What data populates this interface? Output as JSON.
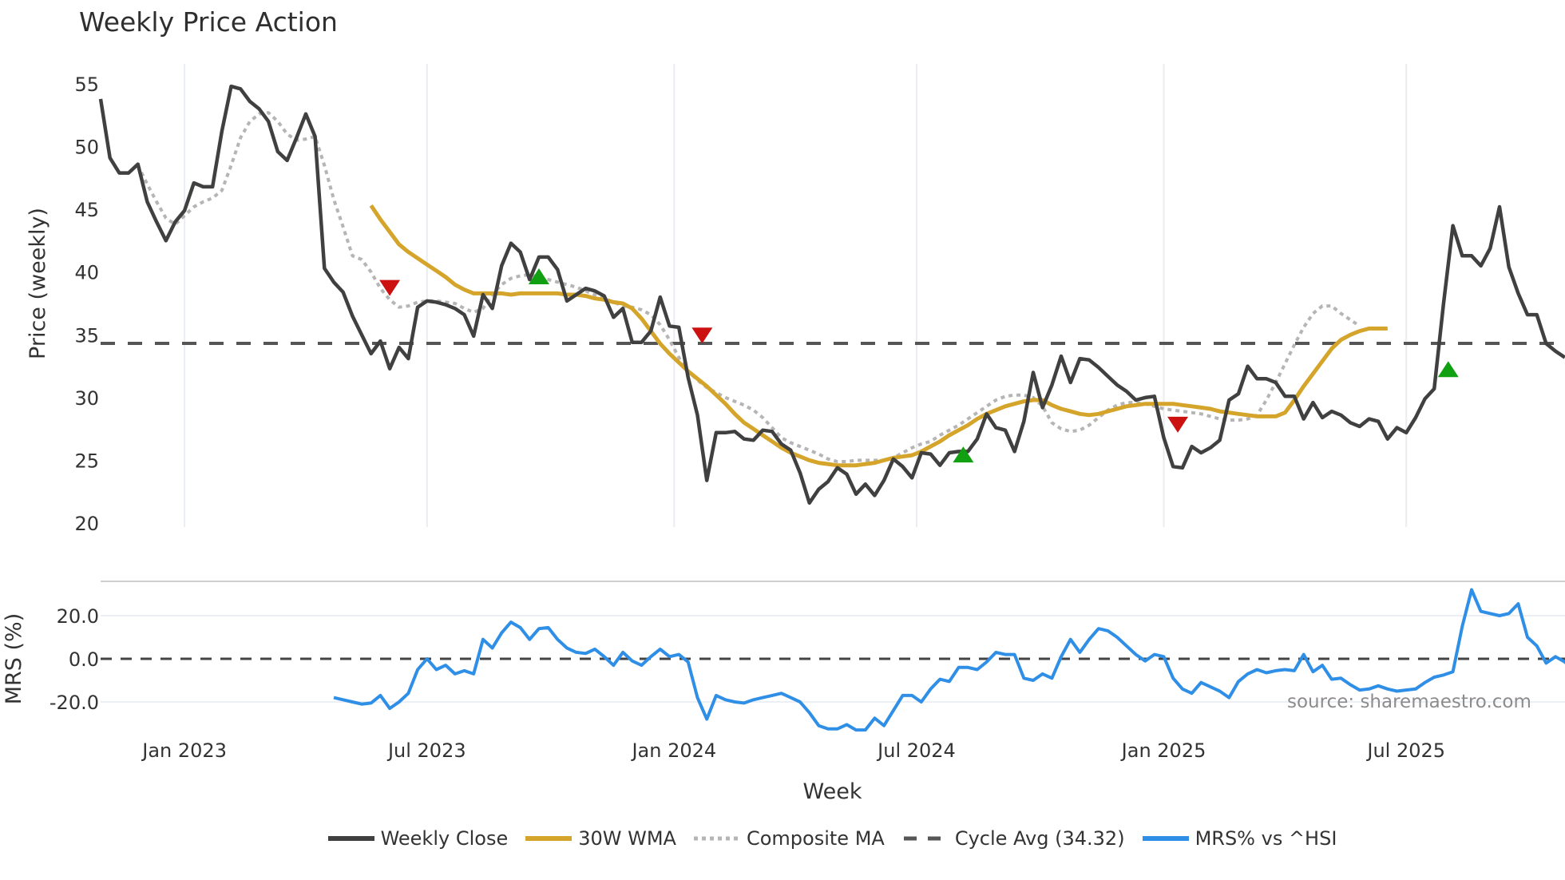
{
  "header": {
    "title": "Weekly Price Action"
  },
  "footer": {
    "source": "source: sharemaestro.com",
    "xlabel": "Week"
  },
  "legend": [
    {
      "label": "Weekly Close",
      "color": "#404040",
      "style": "solid"
    },
    {
      "label": "30W WMA",
      "color": "#d4a52a",
      "style": "solid"
    },
    {
      "label": "Composite MA",
      "color": "#b5b5b5",
      "style": "dotted"
    },
    {
      "label": "Cycle Avg (34.32)",
      "color": "#555555",
      "style": "dashed"
    },
    {
      "label": "MRS% vs ^HSI",
      "color": "#2f8fe6",
      "style": "solid"
    }
  ],
  "chart_data": [
    {
      "type": "line",
      "title": "Weekly Price Action",
      "xlabel": "Week",
      "ylabel": "Price (weekly)",
      "ylim": [
        20,
        55
      ],
      "yticks": [
        20,
        25,
        30,
        35,
        40,
        45,
        50,
        55
      ],
      "xticks": [
        "Jan 2023",
        "Jul 2023",
        "Jan 2024",
        "Jul 2024",
        "Jan 2025",
        "Jul 2025"
      ],
      "xtick_week_index": [
        9,
        35,
        61.5,
        87.5,
        114,
        140
      ],
      "grid": "vertical",
      "x_unit": "week index from first plotted week (~Nov 2022), ~1 week per step",
      "series": [
        {
          "name": "Weekly Close",
          "color": "#404040",
          "start": 0,
          "values": [
            53.8,
            49.1,
            47.9,
            47.9,
            48.6,
            45.6,
            44,
            42.5,
            44,
            44.9,
            47.1,
            46.8,
            46.8,
            51.2,
            54.8,
            54.6,
            53.6,
            53,
            52,
            49.6,
            48.9,
            50.7,
            52.6,
            50.8,
            40.3,
            39.2,
            38.4,
            36.5,
            35,
            33.5,
            34.5,
            32.3,
            34,
            33.1,
            37.2,
            37.7,
            37.6,
            37.4,
            37.1,
            36.6,
            34.9,
            38.2,
            37.1,
            40.5,
            42.3,
            41.6,
            39.4,
            41.2,
            41.2,
            40.2,
            37.7,
            38.2,
            38.7,
            38.5,
            38.1,
            36.4,
            37.1,
            34.4,
            34.4,
            35.3,
            38,
            35.7,
            35.6,
            31.6,
            28.6,
            23.4,
            27.2,
            27.2,
            27.3,
            26.7,
            26.6,
            27.4,
            27.3,
            26.3,
            25.8,
            24,
            21.6,
            22.7,
            23.3,
            24.4,
            23.9,
            22.3,
            23.1,
            22.2,
            23.4,
            25.1,
            24.5,
            23.6,
            25.6,
            25.5,
            24.6,
            25.6,
            25.7,
            25.7,
            26.7,
            28.7,
            27.6,
            27.4,
            25.7,
            28.1,
            32,
            29.2,
            31,
            33.3,
            31.2,
            33.1,
            33,
            32.4,
            31.7,
            31,
            30.5,
            29.8,
            30,
            30.1,
            26.8,
            24.5,
            24.4,
            26.1,
            25.6,
            26,
            26.6,
            29.8,
            30.3,
            32.5,
            31.5,
            31.5,
            31.2,
            30.1,
            30.1,
            28.3,
            29.6,
            28.4,
            28.9,
            28.6,
            28,
            27.7,
            28.3,
            28.1,
            26.7,
            27.6,
            27.2,
            28.4,
            29.9,
            30.7,
            37.5,
            43.7,
            41.3,
            41.3,
            40.5,
            41.9,
            45.2,
            40.4,
            38.3,
            36.6,
            36.6,
            34.3,
            33.7,
            33.2
          ]
        },
        {
          "name": "30W WMA",
          "color": "#d4a52a",
          "start": 29,
          "values": [
            45.3,
            44.2,
            43.2,
            42.2,
            41.6,
            41.1,
            40.6,
            40.1,
            39.6,
            39.0,
            38.6,
            38.3,
            38.3,
            38.3,
            38.3,
            38.2,
            38.3,
            38.3,
            38.3,
            38.3,
            38.3,
            38.2,
            38.2,
            38.1,
            37.9,
            37.8,
            37.6,
            37.5,
            37.1,
            36.3,
            35.3,
            34.3,
            33.5,
            32.8,
            32.1,
            31.5,
            30.9,
            30.2,
            29.5,
            28.7,
            28.0,
            27.5,
            27.0,
            26.5,
            26.0,
            25.6,
            25.3,
            25.0,
            24.8,
            24.7,
            24.6,
            24.6,
            24.6,
            24.7,
            24.8,
            25.0,
            25.2,
            25.3,
            25.4,
            25.7,
            26.1,
            26.5,
            27.0,
            27.4,
            27.8,
            28.3,
            28.7,
            29.0,
            29.3,
            29.5,
            29.7,
            29.8,
            29.8,
            29.4,
            29.1,
            28.9,
            28.7,
            28.6,
            28.7,
            28.9,
            29.1,
            29.3,
            29.4,
            29.5,
            29.5,
            29.5,
            29.5,
            29.4,
            29.3,
            29.2,
            29.1,
            28.9,
            28.8,
            28.7,
            28.6,
            28.5,
            28.5,
            28.5,
            28.8,
            29.8,
            30.9,
            31.9,
            32.9,
            33.9,
            34.6,
            35.0,
            35.3,
            35.5,
            35.5,
            35.5
          ]
        },
        {
          "name": "Composite MA",
          "color": "#b5b5b5",
          "style": "dotted",
          "start": 4,
          "values": [
            48.5,
            47,
            45.6,
            44.3,
            43.8,
            44.5,
            45.2,
            45.6,
            45.9,
            46.5,
            48.5,
            50.7,
            52,
            52.6,
            52.7,
            52,
            51,
            50.5,
            50.6,
            50.8,
            48.5,
            45.8,
            43.6,
            41.3,
            41.0,
            40.0,
            38.7,
            37.8,
            37.2,
            37.3,
            37.6,
            37.7,
            37.7,
            37.6,
            37.5,
            37.1,
            36.8,
            37.1,
            38.2,
            39.0,
            39.5,
            39.7,
            39.8,
            39.6,
            39.4,
            39.2,
            39.0,
            38.8,
            38.5,
            38.2,
            37.9,
            37.6,
            37.3,
            37.2,
            37.0,
            36.6,
            35.8,
            34.6,
            33.2,
            32.1,
            31.4,
            30.8,
            30.4,
            30.0,
            29.7,
            29.4,
            29.0,
            28.4,
            27.6,
            26.8,
            26.4,
            26.1,
            25.8,
            25.5,
            25.1,
            24.9,
            24.9,
            25.0,
            25.0,
            25.0,
            25.0,
            25.2,
            25.6,
            26.0,
            26.3,
            26.5,
            27.0,
            27.4,
            27.8,
            28.3,
            28.8,
            29.3,
            29.8,
            30.1,
            30.2,
            30.2,
            30.0,
            29.3,
            28.0,
            27.5,
            27.3,
            27.4,
            27.8,
            28.4,
            29.0,
            29.4,
            29.6,
            29.6,
            29.5,
            29.3,
            29.1,
            29.0,
            28.9,
            28.8,
            28.7,
            28.5,
            28.3,
            28.2,
            28.2,
            28.3,
            28.6,
            29.8,
            31.2,
            32.7,
            34.2,
            35.6,
            36.7,
            37.3,
            37.3,
            36.7,
            36.2,
            35.7
          ]
        },
        {
          "name": "Cycle Avg (34.32)",
          "color": "#555555",
          "style": "dashed",
          "constant": 34.32
        }
      ],
      "signals": [
        {
          "type": "sell",
          "marker": "down-triangle",
          "color": "#cc1111",
          "week_index": 31,
          "price": 38.8
        },
        {
          "type": "buy",
          "marker": "up-triangle",
          "color": "#11a011",
          "week_index": 47,
          "price": 39.6
        },
        {
          "type": "sell",
          "marker": "down-triangle",
          "color": "#cc1111",
          "week_index": 64.5,
          "price": 35.0
        },
        {
          "type": "buy",
          "marker": "up-triangle",
          "color": "#11a011",
          "week_index": 92.5,
          "price": 25.4
        },
        {
          "type": "sell",
          "marker": "down-triangle",
          "color": "#cc1111",
          "week_index": 115.5,
          "price": 27.9
        },
        {
          "type": "buy",
          "marker": "up-triangle",
          "color": "#11a011",
          "week_index": 144.5,
          "price": 32.2
        }
      ]
    },
    {
      "type": "line",
      "title": "",
      "ylabel": "MRS (%)",
      "ylim": [
        -33,
        33
      ],
      "yticks": [
        -20.0,
        0.0,
        20.0
      ],
      "ytick_labels": [
        "-20.0",
        "0.0",
        "20.0"
      ],
      "zero_line": "dashed",
      "series": [
        {
          "name": "MRS% vs ^HSI",
          "color": "#2f8fe6",
          "start": 25,
          "values": [
            -18,
            -19,
            -20,
            -21,
            -20.5,
            -17,
            -23,
            -20,
            -16,
            -5,
            0,
            -5,
            -3,
            -7,
            -5.5,
            -7,
            9,
            5,
            12,
            17,
            14.5,
            9,
            14,
            14.5,
            9,
            5,
            3,
            2.5,
            4.5,
            1,
            -3,
            3,
            -1,
            -3,
            1,
            4.5,
            1,
            2,
            -1.5,
            -18,
            -28,
            -17,
            -19,
            -20,
            -20.5,
            -19,
            -18,
            -17,
            -16,
            -18,
            -20,
            -25,
            -31,
            -32.5,
            -32.5,
            -30.5,
            -33,
            -33,
            -27.5,
            -31,
            -24,
            -17,
            -17,
            -20,
            -14,
            -9.5,
            -10.5,
            -4,
            -4,
            -5,
            -1.5,
            3,
            2,
            2,
            -9,
            -10,
            -7,
            -9,
            1,
            9,
            3,
            9,
            14,
            13,
            10,
            6,
            2,
            -1,
            2,
            1,
            -9,
            -14,
            -16,
            -11,
            -13,
            -15,
            -18,
            -10.5,
            -7,
            -5,
            -6.5,
            -5.5,
            -5,
            -5.5,
            2,
            -6,
            -3,
            -9.5,
            -9,
            -12,
            -14.5,
            -14,
            -12.5,
            -14,
            -15,
            -14.5,
            -14,
            -11,
            -8.5,
            -7.5,
            -6,
            15,
            32,
            22,
            21,
            20,
            21,
            25.5,
            10,
            6,
            -2,
            1,
            -1.5,
            -5.5,
            -7
          ]
        }
      ]
    }
  ],
  "axes": {
    "price_ylabel": "Price (weekly)",
    "mrs_ylabel": "MRS (%)",
    "price_ticks": [
      "55",
      "50",
      "45",
      "40",
      "35",
      "30",
      "25",
      "20"
    ],
    "mrs_ticks": [
      "20.0",
      "0.0",
      "-20.0"
    ],
    "x_ticks": [
      "Jan 2023",
      "Jul 2023",
      "Jan 2024",
      "Jul 2024",
      "Jan 2025",
      "Jul 2025"
    ]
  }
}
